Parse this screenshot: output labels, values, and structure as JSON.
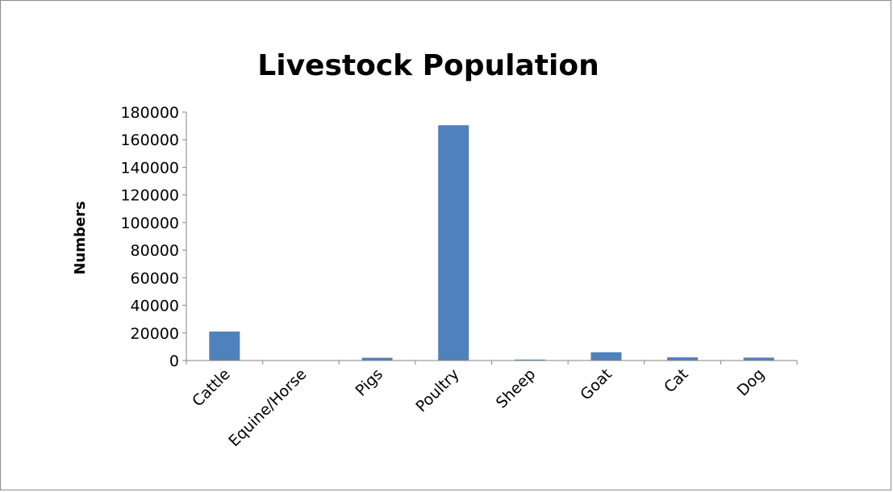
{
  "chart_data": {
    "type": "bar",
    "title": "Livestock Population",
    "xlabel": "",
    "ylabel": "Numbers",
    "categories": [
      "Cattle",
      "Equine/Horse",
      "Pigs",
      "Poultry",
      "Sheep",
      "Goat",
      "Cat",
      "Dog"
    ],
    "values": [
      21000,
      150,
      2000,
      170500,
      700,
      6000,
      2300,
      2100
    ],
    "ylim": [
      0,
      180000
    ],
    "yticks": [
      0,
      20000,
      40000,
      60000,
      80000,
      100000,
      120000,
      140000,
      160000,
      180000
    ],
    "grid": false,
    "legend": "none",
    "bar_color": "#4f81bd",
    "axis_color": "#868686"
  }
}
